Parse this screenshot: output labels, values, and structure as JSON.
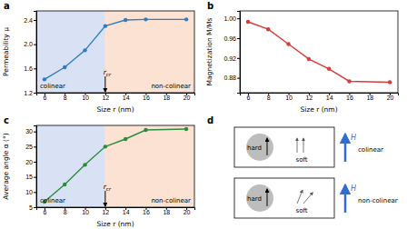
{
  "chart_data": [
    {
      "type": "line",
      "title": "a",
      "x_label": "Size r (nm)",
      "y_label": "Permeability μ",
      "x": [
        6,
        8,
        10,
        12,
        14,
        16,
        20
      ],
      "values": [
        1.42,
        1.62,
        1.9,
        2.3,
        2.4,
        2.41,
        2.41
      ],
      "color": "#2f7cbf",
      "marker": "circle",
      "xlim": [
        5.2,
        20.8
      ],
      "xticks": [
        6,
        8,
        10,
        12,
        14,
        16,
        18,
        20
      ],
      "ylim": [
        1.2,
        2.55
      ],
      "yticks": [
        1.2,
        1.6,
        {
          "value": 2,
          "label": "2.0"
        },
        2.4
      ],
      "regions": [
        {
          "label": "colinear",
          "x0": 5.2,
          "x1": 12,
          "color": "#d9e2f5"
        },
        {
          "label": "non-colinear",
          "x0": 12,
          "x1": 20.8,
          "color": "#fbe2d2"
        }
      ],
      "annotation": {
        "text": "r",
        "subscript": "cr",
        "x": 12
      }
    },
    {
      "type": "line",
      "title": "b",
      "x_label": "Size r (nm)",
      "y_label": "Magnetization M/Ms",
      "x": [
        6,
        8,
        10,
        12,
        14,
        16,
        20
      ],
      "values": [
        0.993,
        0.978,
        0.948,
        0.918,
        0.898,
        0.873,
        0.871
      ],
      "color": "#d93a3a",
      "marker": "circle",
      "xlim": [
        5.2,
        20.8
      ],
      "xticks": [
        6,
        8,
        10,
        12,
        14,
        16,
        18,
        20
      ],
      "ylim": [
        0.85,
        1.015
      ],
      "yticks": [
        0.88,
        0.92,
        0.96,
        {
          "value": 1,
          "label": "1.00"
        }
      ]
    },
    {
      "type": "line",
      "title": "c",
      "x_label": "Size r (nm)",
      "y_label": "Average angle α (°)",
      "x": [
        6,
        8,
        10,
        12,
        14,
        16,
        20
      ],
      "values": [
        6.8,
        12.5,
        19,
        25,
        27.5,
        30.5,
        30.8
      ],
      "color": "#2e8b3e",
      "marker": "circle",
      "xlim": [
        5.2,
        20.8
      ],
      "xticks": [
        6,
        8,
        10,
        12,
        14,
        16,
        18,
        20
      ],
      "ylim": [
        5,
        32
      ],
      "yticks": [
        5,
        10,
        15,
        20,
        25,
        30
      ],
      "regions": [
        {
          "label": "colinear",
          "x0": 5.2,
          "x1": 12,
          "color": "#d9e2f5"
        },
        {
          "label": "non-colinear",
          "x0": 12,
          "x1": 20.8,
          "color": "#fbe2d2"
        }
      ],
      "annotation": {
        "text": "r",
        "subscript": "cr",
        "x": 12
      }
    }
  ],
  "diagram": {
    "label": "d",
    "rows": [
      {
        "hard": "hard",
        "soft": "soft",
        "field": "H",
        "state": "colinear"
      },
      {
        "hard": "hard",
        "soft": "soft",
        "field": "H",
        "state": "non-colinear"
      }
    ]
  }
}
